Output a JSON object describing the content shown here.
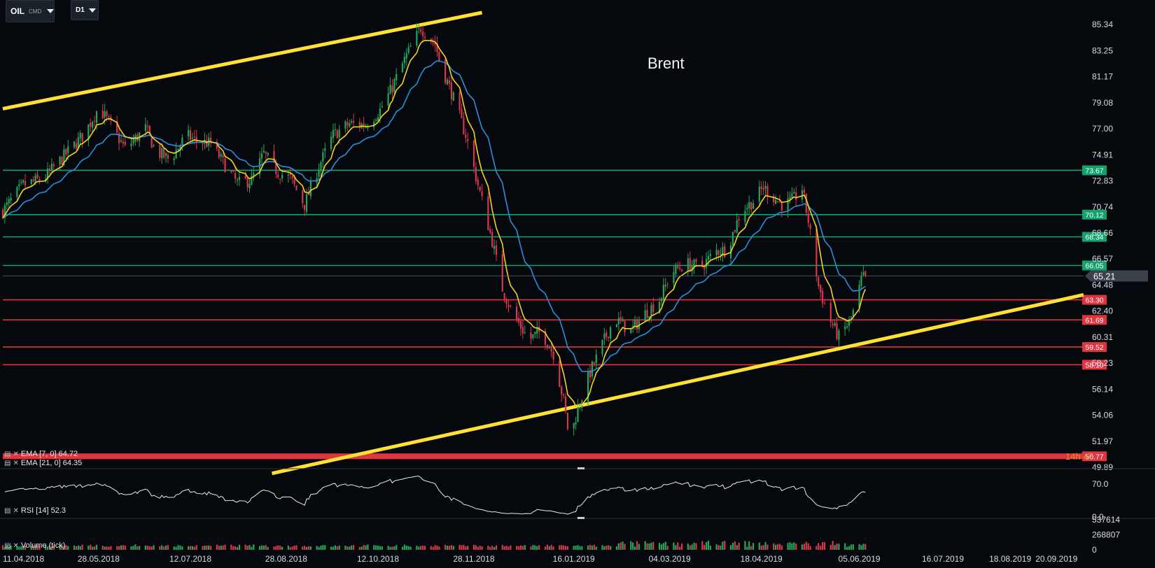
{
  "toolbar": {
    "symbol": "OIL",
    "symbol_type": "CMD",
    "timeframe": "D1"
  },
  "indicators": {
    "ema7": "EMA [7, 0] 64.72",
    "ema21": "EMA [21, 0] 64.35",
    "rsi": "RSI [14] 52.3",
    "volume": "Volume (tick)"
  },
  "countdown": "14h 47",
  "colors": {
    "background": "#05080d",
    "bull": "#26a65b",
    "bear": "#d9374b",
    "ema_fast": "#f5d21f",
    "ema_slow": "#2b8fd8",
    "trendline": "#ffe134",
    "support": "#e0343f",
    "resistance": "#12a36d"
  },
  "chart_data": {
    "type": "candlestick",
    "title": "Brent",
    "ylim": [
      49.89,
      86.3
    ],
    "y_ticks": [
      "85.34",
      "83.25",
      "81.17",
      "79.08",
      "77.00",
      "74.91",
      "72.83",
      "70.74",
      "68.66",
      "66.57",
      "64.48",
      "62.40",
      "60.31",
      "58.23",
      "56.14",
      "54.06",
      "51.97",
      "49.89"
    ],
    "x_ticks": [
      "11.04.2018",
      "28.05.2018",
      "12.07.2018",
      "28.08.2018",
      "12.10.2018",
      "28.11.2018",
      "16.01.2019",
      "04.03.2019",
      "18.04.2019",
      "05.06.2019",
      "16.07.2019",
      "18.08.2019",
      "20.09.2019"
    ],
    "x_range_days": [
      0,
      530
    ],
    "last_candle_day": 423,
    "current_price": "65.21",
    "price_path": [
      [
        0,
        70.4
      ],
      [
        10,
        72.5
      ],
      [
        20,
        73.0
      ],
      [
        30,
        74.8
      ],
      [
        40,
        76.6
      ],
      [
        47,
        78.7
      ],
      [
        52,
        77.5
      ],
      [
        60,
        75.4
      ],
      [
        70,
        77.0
      ],
      [
        75,
        75.2
      ],
      [
        82,
        74.5
      ],
      [
        90,
        76.5
      ],
      [
        95,
        76.0
      ],
      [
        102,
        75.8
      ],
      [
        110,
        73.8
      ],
      [
        115,
        72.6
      ],
      [
        122,
        72.9
      ],
      [
        128,
        75.0
      ],
      [
        135,
        73.5
      ],
      [
        141,
        73.0
      ],
      [
        148,
        70.9
      ],
      [
        155,
        74.0
      ],
      [
        162,
        76.5
      ],
      [
        170,
        77.4
      ],
      [
        178,
        77.3
      ],
      [
        185,
        78.5
      ],
      [
        190,
        80.0
      ],
      [
        197,
        82.5
      ],
      [
        205,
        85.1
      ],
      [
        212,
        83.8
      ],
      [
        215,
        82.0
      ],
      [
        220,
        79.9
      ],
      [
        227,
        76.5
      ],
      [
        233,
        72.5
      ],
      [
        240,
        68.0
      ],
      [
        245,
        64.2
      ],
      [
        250,
        62.2
      ],
      [
        258,
        60.1
      ],
      [
        264,
        60.8
      ],
      [
        270,
        59.0
      ],
      [
        275,
        55.2
      ],
      [
        278,
        52.0
      ],
      [
        282,
        54.6
      ],
      [
        288,
        57.5
      ],
      [
        295,
        60.1
      ],
      [
        300,
        61.8
      ],
      [
        308,
        60.8
      ],
      [
        315,
        62.2
      ],
      [
        322,
        63.3
      ],
      [
        328,
        65.5
      ],
      [
        335,
        66.2
      ],
      [
        342,
        65.9
      ],
      [
        350,
        67.2
      ],
      [
        355,
        67.3
      ],
      [
        362,
        70.4
      ],
      [
        368,
        71.2
      ],
      [
        373,
        72.3
      ],
      [
        378,
        71.5
      ],
      [
        383,
        70.8
      ],
      [
        388,
        71.4
      ],
      [
        392,
        72.2
      ],
      [
        395,
        69.6
      ],
      [
        400,
        64.4
      ],
      [
        405,
        61.9
      ],
      [
        410,
        60.3
      ],
      [
        415,
        61.5
      ],
      [
        418,
        62.7
      ],
      [
        421,
        64.9
      ],
      [
        423,
        65.2
      ]
    ],
    "series": [
      {
        "name": "EMA [7, 0]",
        "last": 64.72
      },
      {
        "name": "EMA [21, 0]",
        "last": 64.35
      }
    ],
    "horizontal_levels": [
      {
        "value": 73.67,
        "label": "73.67",
        "kind": "resistance"
      },
      {
        "value": 70.12,
        "label": "70.12",
        "kind": "resistance"
      },
      {
        "value": 68.34,
        "label": "68.34",
        "kind": "resistance"
      },
      {
        "value": 66.05,
        "label": "66.05",
        "kind": "resistance"
      },
      {
        "value": 63.3,
        "label": "63.30",
        "kind": "support"
      },
      {
        "value": 61.69,
        "label": "61.69",
        "kind": "support"
      },
      {
        "value": 59.52,
        "label": "59.52",
        "kind": "support"
      },
      {
        "value": 58.1,
        "label": "58.10",
        "kind": "support"
      },
      {
        "value": 50.77,
        "label": "50.77",
        "kind": "support"
      }
    ],
    "trendlines": [
      {
        "from": [
          0,
          78.6
        ],
        "to": [
          235,
          86.3
        ]
      },
      {
        "from": [
          132,
          49.4
        ],
        "to": [
          530,
          63.7
        ]
      }
    ],
    "rsi": {
      "ticks": [
        "70.0",
        "0.0"
      ],
      "ylim": [
        0,
        100
      ],
      "last": 52.3
    },
    "volume": {
      "ticks": [
        "537614",
        "268807",
        "0"
      ],
      "max": 537614
    }
  }
}
